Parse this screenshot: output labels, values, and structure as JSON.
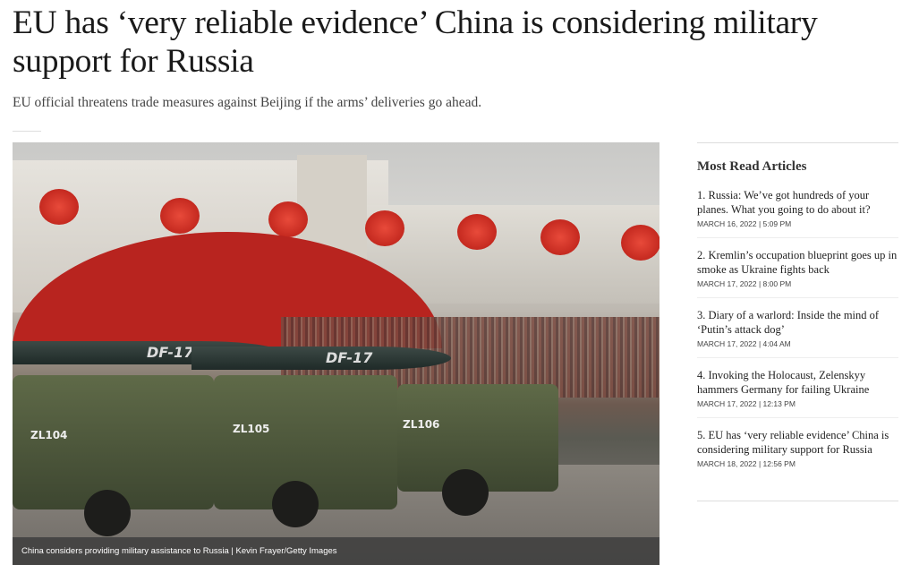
{
  "article": {
    "headline": "EU has ‘very reliable evidence’ China is considering military support for Russia",
    "subtitle": "EU official threatens trade measures against Beijing if the arms’ deliveries go ahead.",
    "image": {
      "caption": "China considers providing military assistance to Russia | Kevin Frayer/Getty Images",
      "missile_labels": [
        "DF-17",
        "DF-17"
      ],
      "vehicle_plates": [
        "ZL104",
        "ZL105",
        "ZL106"
      ]
    }
  },
  "sidebar": {
    "title": "Most Read Articles",
    "items": [
      {
        "title": "1. Russia: We’ve got hundreds of your planes. What you going to do about it?",
        "date": "MARCH 16, 2022  | 5:09 PM"
      },
      {
        "title": "2. Kremlin’s occupation blueprint goes up in smoke as Ukraine fights back",
        "date": "MARCH 17, 2022  | 8:00 PM"
      },
      {
        "title": "3. Diary of a warlord: Inside the mind of ‘Putin’s attack dog’",
        "date": "MARCH 17, 2022  | 4:04 AM"
      },
      {
        "title": "4. Invoking the Holocaust, Zelenskyy hammers Germany for failing Ukraine",
        "date": "MARCH 17, 2022  | 12:13 PM"
      },
      {
        "title": "5. EU has ‘very reliable evidence’ China is considering military support for Russia",
        "date": "MARCH 18, 2022  | 12:56 PM"
      }
    ]
  }
}
